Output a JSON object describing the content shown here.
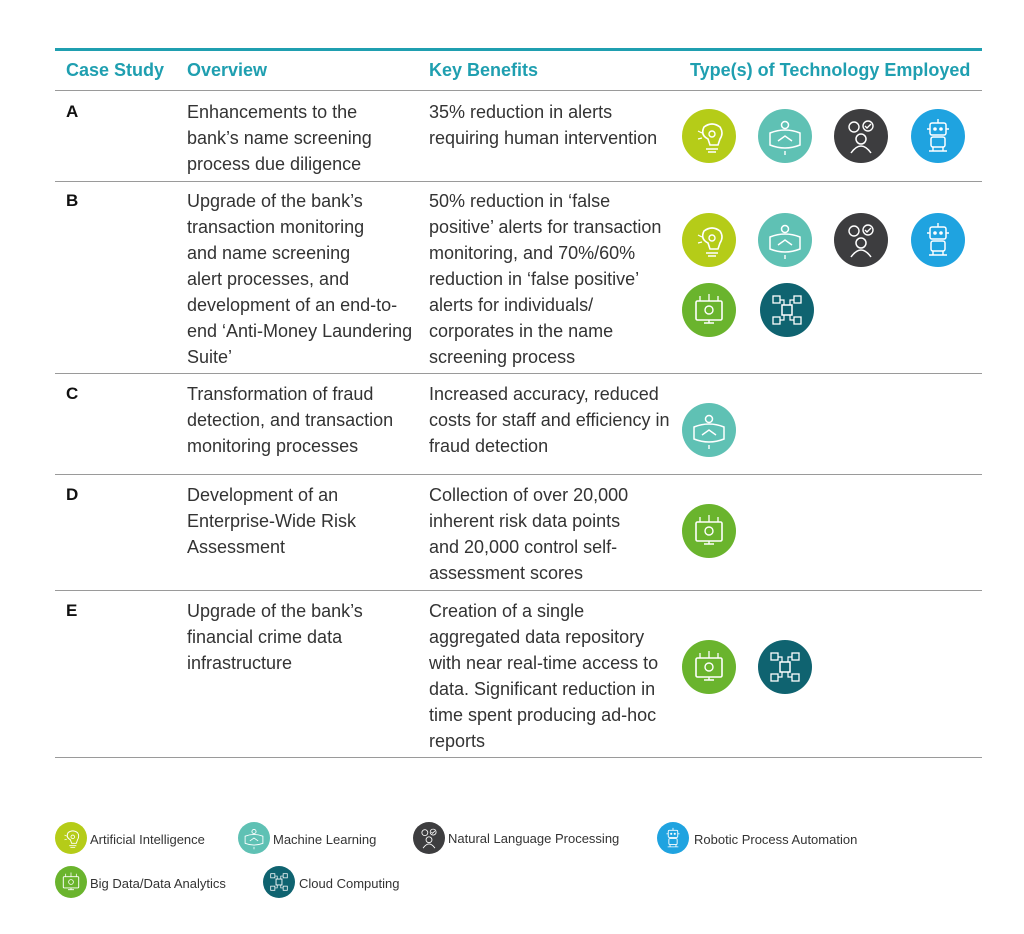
{
  "header": {
    "case_study": "Case Study",
    "overview": "Overview",
    "key_benefits": "Key Benefits",
    "technology": "Type(s) of Technology Employed"
  },
  "rows": [
    {
      "id": "A",
      "overview": [
        "Enhancements to the",
        "bank’s name screening",
        "process due diligence"
      ],
      "benefits": [
        "35% reduction in alerts",
        "requiring human intervention"
      ],
      "technologies": [
        "ai-icon",
        "ml-icon",
        "nlp-icon",
        "rpa-icon"
      ]
    },
    {
      "id": "B",
      "overview": [
        "Upgrade of the bank’s",
        "transaction monitoring",
        "and name screening",
        "alert processes, and",
        "development of an end-to-",
        "end ‘Anti-Money Laundering",
        "Suite’"
      ],
      "benefits": [
        "50% reduction in ‘false",
        "positive’ alerts for transaction",
        "monitoring, and 70%/60%",
        "reduction in ‘false positive’",
        "alerts for individuals/",
        "corporates in the name",
        "screening process"
      ],
      "technologies": [
        "ai-icon",
        "ml-icon",
        "nlp-icon",
        "rpa-icon",
        "bigdata-icon",
        "cloud-icon"
      ]
    },
    {
      "id": "C",
      "overview": [
        "Transformation of fraud",
        "detection, and transaction",
        "monitoring processes"
      ],
      "benefits": [
        "Increased accuracy, reduced",
        "costs for staff and efficiency in",
        "fraud detection"
      ],
      "technologies": [
        "ml-icon"
      ]
    },
    {
      "id": "D",
      "overview": [
        "Development of an",
        "Enterprise-Wide Risk",
        "Assessment"
      ],
      "benefits": [
        "Collection of over 20,000",
        "inherent risk data points",
        "and 20,000 control self-",
        "assessment scores"
      ],
      "technologies": [
        "bigdata-icon"
      ]
    },
    {
      "id": "E",
      "overview": [
        "Upgrade of the bank’s",
        "financial crime data",
        "infrastructure"
      ],
      "benefits": [
        "Creation of a single",
        "aggregated data repository",
        "with near real-time access to",
        "data. Significant reduction in",
        "time spent producing ad-hoc",
        "reports"
      ],
      "technologies": [
        "bigdata-icon",
        "cloud-icon"
      ]
    }
  ],
  "legend": [
    {
      "icon": "ai-icon",
      "label": "Artificial Intelligence",
      "color": "#b5cc18"
    },
    {
      "icon": "ml-icon",
      "label": "Machine Learning",
      "color": "#5fc1b4"
    },
    {
      "icon": "nlp-icon",
      "label": "Natural Language Processing",
      "color": "#3d3d3f"
    },
    {
      "icon": "rpa-icon",
      "label": "Robotic Process Automation",
      "color": "#1fa3e0"
    },
    {
      "icon": "bigdata-icon",
      "label": "Big Data/Data Analytics",
      "color": "#6ab42d"
    },
    {
      "icon": "cloud-icon",
      "label": "Cloud Computing",
      "color": "#0f6370"
    }
  ],
  "colors": {
    "accent": "#1f9fb0",
    "ai": "#b5cc18",
    "ml": "#5fc1b4",
    "nlp": "#3d3d3f",
    "rpa": "#1fa3e0",
    "bigdata": "#6ab42d",
    "cloud": "#0f6370"
  }
}
